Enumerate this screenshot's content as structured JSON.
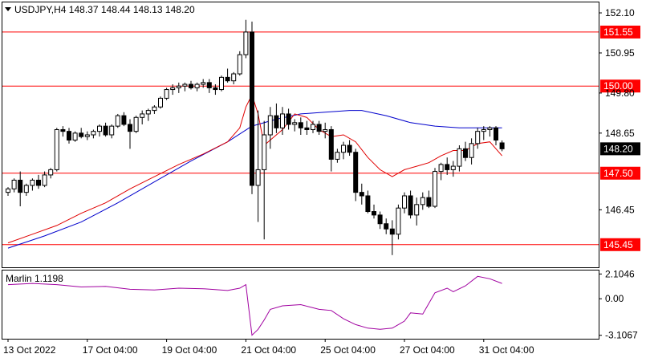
{
  "header": {
    "symbol_line": "USDJPY,H4  148.37 148.44 148.13 148.20"
  },
  "indicator": {
    "label": "Marlin 1.1198",
    "ticks": [
      "2.1046",
      "0.00",
      "-3.1067"
    ]
  },
  "colors": {
    "bull": "#ffffff",
    "bear": "#000000",
    "level_line": "#ff0000",
    "ma_fast": "#e00000",
    "ma_slow": "#0000cc",
    "oscillator": "#a000a0",
    "grid": "#000000"
  },
  "chart_data": {
    "type": "candlestick",
    "timeframe": "H4",
    "symbol": "USDJPY",
    "ylim": [
      144.8,
      152.4
    ],
    "y_ticks": [
      152.1,
      150.95,
      149.8,
      148.65,
      146.45
    ],
    "y_tick_labels": [
      "152.10",
      "150.95",
      "149.80",
      "148.65",
      "146.45"
    ],
    "x_tick_labels": [
      "13 Oct 2022",
      "17 Oct 04:00",
      "19 Oct 04:00",
      "21 Oct 04:00",
      "25 Oct 04:00",
      "27 Oct 04:00",
      "31 Oct 04:00"
    ],
    "x_tick_index": [
      0,
      13,
      26,
      39,
      52,
      65,
      78
    ],
    "levels": [
      {
        "value": 151.55,
        "label": "151.55"
      },
      {
        "value": 150.0,
        "label": "150.00"
      },
      {
        "value": 147.5,
        "label": "147.50"
      },
      {
        "value": 145.45,
        "label": "145.45"
      }
    ],
    "current_price": {
      "value": 148.2,
      "label": "148.20"
    },
    "candles": [
      [
        146.95,
        147.1,
        146.85,
        147.05
      ],
      [
        147.05,
        147.35,
        146.95,
        147.3
      ],
      [
        147.3,
        147.55,
        146.55,
        146.95
      ],
      [
        146.95,
        147.2,
        146.85,
        147.15
      ],
      [
        147.15,
        147.35,
        147.0,
        147.3
      ],
      [
        147.3,
        147.45,
        147.05,
        147.15
      ],
      [
        147.15,
        147.55,
        147.1,
        147.45
      ],
      [
        147.45,
        147.65,
        147.35,
        147.6
      ],
      [
        147.6,
        148.8,
        147.55,
        148.75
      ],
      [
        148.75,
        148.85,
        148.55,
        148.7
      ],
      [
        148.7,
        148.8,
        148.35,
        148.45
      ],
      [
        148.45,
        148.7,
        148.4,
        148.65
      ],
      [
        148.65,
        148.8,
        148.5,
        148.55
      ],
      [
        148.55,
        148.7,
        148.45,
        148.6
      ],
      [
        148.6,
        148.75,
        148.5,
        148.7
      ],
      [
        148.7,
        148.9,
        148.55,
        148.85
      ],
      [
        148.85,
        148.95,
        148.55,
        148.6
      ],
      [
        148.6,
        148.9,
        148.5,
        148.85
      ],
      [
        148.85,
        149.2,
        148.8,
        149.15
      ],
      [
        149.15,
        149.25,
        148.85,
        148.9
      ],
      [
        148.9,
        149.05,
        148.2,
        148.7
      ],
      [
        148.7,
        149.15,
        148.65,
        149.1
      ],
      [
        149.1,
        149.3,
        148.9,
        149.2
      ],
      [
        149.2,
        149.35,
        149.0,
        149.3
      ],
      [
        149.3,
        149.45,
        149.2,
        149.4
      ],
      [
        149.4,
        149.7,
        149.35,
        149.65
      ],
      [
        149.65,
        149.95,
        149.6,
        149.9
      ],
      [
        149.9,
        150.05,
        149.75,
        149.95
      ],
      [
        149.95,
        150.1,
        149.8,
        150.0
      ],
      [
        150.0,
        150.1,
        149.85,
        150.05
      ],
      [
        150.05,
        150.15,
        149.9,
        149.95
      ],
      [
        149.95,
        150.1,
        149.85,
        150.05
      ],
      [
        150.05,
        150.2,
        149.95,
        150.1
      ],
      [
        150.1,
        150.2,
        149.8,
        149.95
      ],
      [
        149.95,
        150.05,
        149.75,
        149.9
      ],
      [
        149.9,
        150.3,
        149.85,
        150.25
      ],
      [
        150.25,
        150.5,
        150.1,
        150.15
      ],
      [
        150.15,
        150.4,
        150.05,
        150.35
      ],
      [
        150.35,
        151.0,
        150.3,
        150.9
      ],
      [
        150.9,
        151.9,
        150.8,
        151.55
      ],
      [
        151.55,
        151.85,
        146.9,
        147.15
      ],
      [
        147.15,
        149.3,
        146.1,
        147.6
      ],
      [
        147.6,
        149.0,
        145.6,
        148.6
      ],
      [
        148.6,
        149.4,
        148.2,
        149.15
      ],
      [
        149.15,
        149.5,
        148.65,
        148.8
      ],
      [
        148.8,
        149.4,
        148.6,
        149.2
      ],
      [
        149.2,
        149.35,
        148.75,
        148.9
      ],
      [
        148.9,
        149.05,
        148.7,
        148.95
      ],
      [
        148.95,
        149.1,
        148.6,
        148.8
      ],
      [
        148.8,
        149.0,
        148.6,
        148.75
      ],
      [
        148.75,
        149.0,
        148.65,
        148.9
      ],
      [
        148.9,
        149.0,
        148.6,
        148.7
      ],
      [
        148.7,
        148.95,
        148.5,
        148.75
      ],
      [
        148.75,
        148.85,
        147.55,
        147.9
      ],
      [
        147.9,
        148.2,
        147.8,
        148.1
      ],
      [
        148.1,
        148.4,
        147.9,
        148.3
      ],
      [
        148.3,
        148.45,
        148.0,
        148.1
      ],
      [
        148.1,
        148.2,
        146.7,
        146.95
      ],
      [
        146.95,
        147.2,
        146.6,
        146.85
      ],
      [
        146.85,
        147.0,
        146.35,
        146.4
      ],
      [
        146.4,
        146.6,
        146.2,
        146.3
      ],
      [
        146.3,
        146.4,
        145.9,
        146.05
      ],
      [
        146.05,
        146.2,
        145.75,
        145.9
      ],
      [
        145.9,
        146.15,
        145.15,
        145.75
      ],
      [
        145.75,
        146.6,
        145.6,
        146.5
      ],
      [
        146.5,
        146.95,
        146.35,
        146.85
      ],
      [
        146.85,
        147.0,
        146.2,
        146.3
      ],
      [
        146.3,
        146.8,
        146.0,
        146.6
      ],
      [
        146.6,
        146.95,
        146.45,
        146.8
      ],
      [
        146.8,
        147.0,
        146.5,
        146.55
      ],
      [
        146.55,
        147.65,
        146.5,
        147.55
      ],
      [
        147.55,
        147.8,
        147.3,
        147.75
      ],
      [
        147.75,
        147.95,
        147.45,
        147.6
      ],
      [
        147.6,
        147.85,
        147.4,
        147.7
      ],
      [
        147.7,
        148.3,
        147.55,
        148.2
      ],
      [
        148.2,
        148.4,
        147.85,
        147.95
      ],
      [
        147.95,
        148.5,
        147.75,
        148.35
      ],
      [
        148.35,
        148.8,
        148.2,
        148.7
      ],
      [
        148.7,
        148.85,
        148.45,
        148.75
      ],
      [
        148.75,
        148.85,
        148.55,
        148.8
      ],
      [
        148.8,
        148.85,
        148.3,
        148.45
      ],
      [
        148.37,
        148.44,
        148.13,
        148.2
      ]
    ],
    "ma_fast": [
      [
        0,
        145.5
      ],
      [
        4,
        145.75
      ],
      [
        8,
        146.0
      ],
      [
        12,
        146.35
      ],
      [
        16,
        146.65
      ],
      [
        20,
        147.05
      ],
      [
        24,
        147.4
      ],
      [
        28,
        147.75
      ],
      [
        32,
        148.05
      ],
      [
        36,
        148.4
      ],
      [
        38,
        148.8
      ],
      [
        39,
        149.4
      ],
      [
        40,
        149.75
      ],
      [
        41,
        149.2
      ],
      [
        42,
        148.3
      ],
      [
        43,
        148.45
      ],
      [
        45,
        148.75
      ],
      [
        47,
        149.2
      ],
      [
        49,
        149.1
      ],
      [
        51,
        148.75
      ],
      [
        53,
        148.55
      ],
      [
        55,
        148.6
      ],
      [
        57,
        148.4
      ],
      [
        59,
        147.95
      ],
      [
        61,
        147.6
      ],
      [
        63,
        147.4
      ],
      [
        65,
        147.6
      ],
      [
        67,
        147.7
      ],
      [
        69,
        147.8
      ],
      [
        71,
        148.0
      ],
      [
        73,
        148.15
      ],
      [
        75,
        148.15
      ],
      [
        77,
        148.35
      ],
      [
        79,
        148.4
      ],
      [
        81,
        148.0
      ]
    ],
    "ma_slow": [
      [
        0,
        145.35
      ],
      [
        6,
        145.7
      ],
      [
        12,
        146.1
      ],
      [
        18,
        146.65
      ],
      [
        24,
        147.25
      ],
      [
        30,
        147.85
      ],
      [
        36,
        148.4
      ],
      [
        40,
        148.85
      ],
      [
        44,
        149.05
      ],
      [
        48,
        149.2
      ],
      [
        52,
        149.25
      ],
      [
        56,
        149.3
      ],
      [
        58,
        149.3
      ],
      [
        62,
        149.15
      ],
      [
        66,
        148.95
      ],
      [
        70,
        148.85
      ],
      [
        74,
        148.8
      ],
      [
        78,
        148.8
      ],
      [
        81,
        148.8
      ]
    ],
    "oscillator": {
      "ylim": [
        -3.4,
        2.4
      ],
      "points": [
        [
          0,
          1.2
        ],
        [
          4,
          1.3
        ],
        [
          8,
          1.2
        ],
        [
          12,
          1.0
        ],
        [
          16,
          1.05
        ],
        [
          20,
          0.8
        ],
        [
          24,
          0.75
        ],
        [
          28,
          0.9
        ],
        [
          32,
          0.85
        ],
        [
          36,
          0.7
        ],
        [
          38,
          0.9
        ],
        [
          39,
          1.2
        ],
        [
          40,
          -3.1
        ],
        [
          41,
          -2.6
        ],
        [
          42,
          -1.8
        ],
        [
          43,
          -0.9
        ],
        [
          45,
          -0.6
        ],
        [
          48,
          -0.5
        ],
        [
          51,
          -0.9
        ],
        [
          53,
          -1.0
        ],
        [
          55,
          -1.7
        ],
        [
          57,
          -2.2
        ],
        [
          59,
          -2.5
        ],
        [
          61,
          -2.6
        ],
        [
          63,
          -2.5
        ],
        [
          64,
          -2.2
        ],
        [
          65,
          -1.9
        ],
        [
          66,
          -1.2
        ],
        [
          68,
          -1.3
        ],
        [
          70,
          0.5
        ],
        [
          72,
          0.9
        ],
        [
          73,
          0.6
        ],
        [
          75,
          1.1
        ],
        [
          77,
          1.9
        ],
        [
          79,
          1.7
        ],
        [
          81,
          1.3
        ]
      ]
    }
  }
}
